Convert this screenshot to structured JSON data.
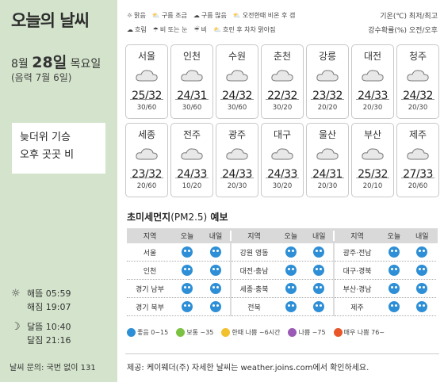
{
  "title": "오늘의 날씨",
  "date": {
    "month_prefix": "8월",
    "day": "28일",
    "weekday": "목요일"
  },
  "lunar": "(음력 7월 6일)",
  "note": {
    "line1": "늦더위 기승",
    "line2": "오후 곳곳 비"
  },
  "legend": {
    "row1": [
      "맑음",
      "구름 조금",
      "구름 많음",
      "오전한때 비온 후 갬"
    ],
    "row2": [
      "흐림",
      "비 또는 눈",
      "비",
      "흐린 후 차차 맑아짐"
    ],
    "temp_note": "기온(℃) 최저/최고",
    "rain_note": "강수확률(%) 오전/오후"
  },
  "cities": [
    {
      "name": "서울",
      "temp": "25/32",
      "rain": "30/60"
    },
    {
      "name": "인천",
      "temp": "24/31",
      "rain": "30/60"
    },
    {
      "name": "수원",
      "temp": "24/32",
      "rain": "30/60"
    },
    {
      "name": "춘천",
      "temp": "22/32",
      "rain": "30/20"
    },
    {
      "name": "강릉",
      "temp": "23/32",
      "rain": "20/20"
    },
    {
      "name": "대전",
      "temp": "24/33",
      "rain": "20/30"
    },
    {
      "name": "청주",
      "temp": "24/32",
      "rain": "20/30"
    },
    {
      "name": "세종",
      "temp": "23/32",
      "rain": "20/60"
    },
    {
      "name": "전주",
      "temp": "24/33",
      "rain": "10/20"
    },
    {
      "name": "광주",
      "temp": "24/33",
      "rain": "20/30"
    },
    {
      "name": "대구",
      "temp": "24/33",
      "rain": "30/20"
    },
    {
      "name": "울산",
      "temp": "24/31",
      "rain": "20/30"
    },
    {
      "name": "부산",
      "temp": "25/32",
      "rain": "20/10"
    },
    {
      "name": "제주",
      "temp": "27/33",
      "rain": "20/60"
    }
  ],
  "pm": {
    "title": "초미세먼지",
    "unit": "(PM2.5)",
    "title_suffix": " 예보",
    "head": {
      "region": "지역",
      "today": "오늘",
      "tomorrow": "내일"
    },
    "regions": [
      [
        "서울",
        "인천",
        "경기 남부",
        "경기 북부"
      ],
      [
        "강원 영동",
        "대전·충남",
        "세종·충북",
        "전북"
      ],
      [
        "광주·전남",
        "대구·경북",
        "부산·경남",
        "제주"
      ]
    ],
    "legend": [
      "좋음 0~15",
      "보통 ~35",
      "한때 나쁨 ~6시간",
      "나쁨 ~75",
      "매우 나쁨 76~"
    ],
    "legend_colors": [
      "#2e8fd6",
      "#7cc242",
      "#f2c12e",
      "#9b59b6",
      "#e8562a"
    ]
  },
  "sun": {
    "rise_label": "해뜸",
    "rise": "05:59",
    "set_label": "해짐",
    "set": "19:07"
  },
  "moon": {
    "rise_label": "달뜸",
    "rise": "10:40",
    "set_label": "달짐",
    "set": "21:16"
  },
  "contact": "날씨 문의: 국번 없이 131",
  "footer": "제공: 케이웨더(주) 자세한 날씨는 weather.joins.com에서 확인하세요."
}
